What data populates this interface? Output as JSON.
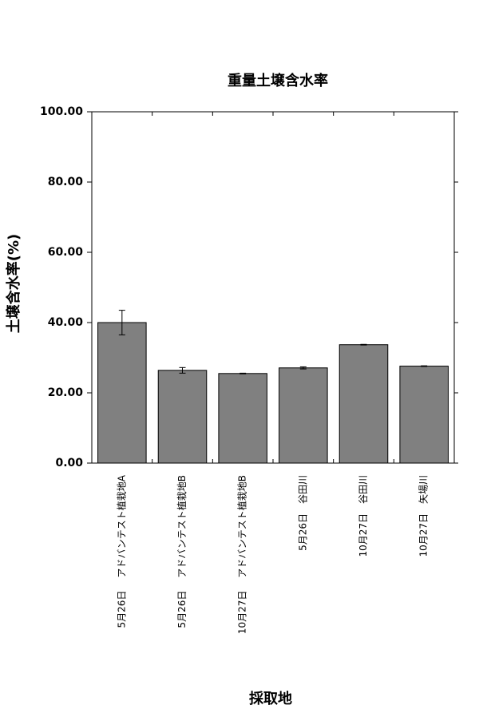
{
  "chart_data": {
    "type": "bar",
    "title": "重量土壌含水率",
    "x_label": "採取地",
    "y_label": "土壌含水率(%)",
    "categories": [
      "5月26日　 アドバンテスト植栽地A",
      "5月26日　 アドバンテスト植栽地B",
      "10月27日　 アドバンテスト植栽地B",
      "5月26日　谷田川",
      "10月27日　谷田川",
      "10月27日　矢場川"
    ],
    "values": [
      40.0,
      26.4,
      25.5,
      27.1,
      33.7,
      27.6
    ],
    "errors": [
      3.5,
      0.8,
      0.1,
      0.3,
      0.1,
      0.1
    ],
    "color": "#808080",
    "ylim": [
      0,
      100
    ],
    "yticks": [
      {
        "value": 0,
        "label": "0.00"
      },
      {
        "value": 20,
        "label": "20.00"
      },
      {
        "value": 40,
        "label": "40.00"
      },
      {
        "value": 60,
        "label": "60.00"
      },
      {
        "value": 80,
        "label": "80.00"
      },
      {
        "value": 100,
        "label": "100.00"
      }
    ]
  }
}
